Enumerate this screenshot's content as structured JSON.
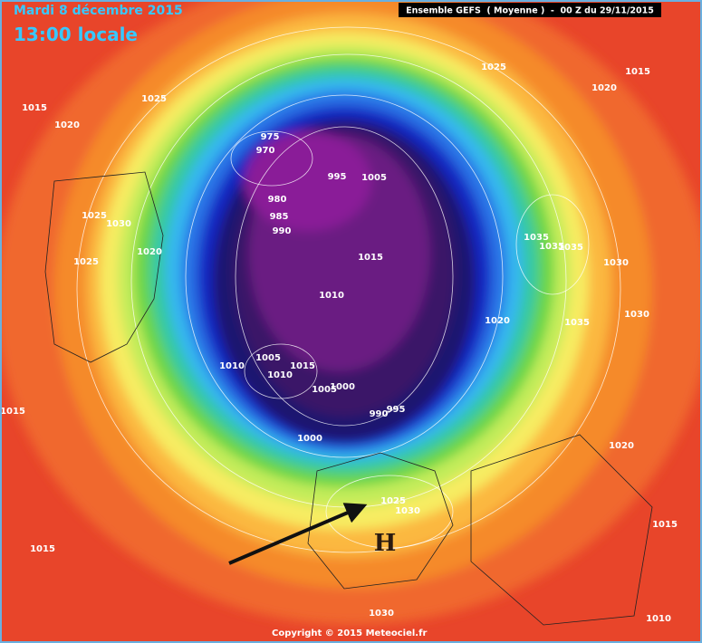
{
  "header": {
    "date": "Mardi 8 décembre 2015",
    "time": "13:00 locale",
    "model": "Ensemble GEFS  ( Moyenne )  -  00 Z du 29/11/2015"
  },
  "isobar_labels": [
    1025,
    1015,
    1020,
    1025,
    1015,
    1020,
    975,
    970,
    995,
    1005,
    980,
    985,
    990,
    1025,
    1030,
    1020,
    1025,
    1035,
    1035,
    1035,
    1030,
    1015,
    1010,
    1020,
    1035,
    1030,
    1010,
    1005,
    1015,
    1010,
    1005,
    1000,
    990,
    995,
    1015,
    1000,
    1020,
    1025,
    1030,
    1015,
    1015,
    1030,
    1010
  ],
  "marker": "H",
  "copyright": "Copyright © 2015 Meteociel.fr"
}
